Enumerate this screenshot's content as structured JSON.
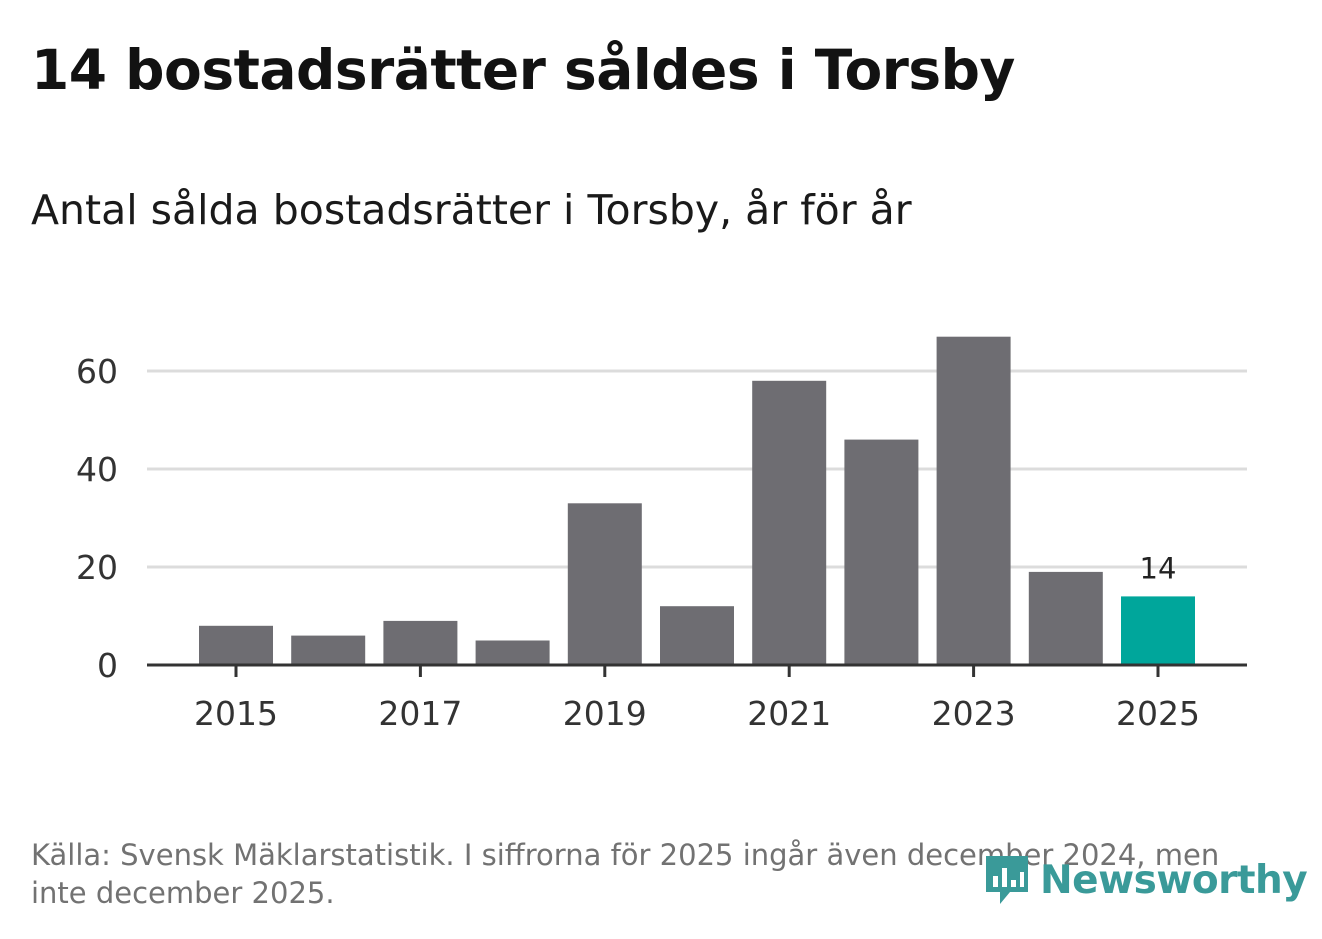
{
  "header": {
    "title": "14 bostadsrätter såldes i Torsby",
    "subtitle": "Antal sålda bostadsrätter i Torsby, år för år"
  },
  "footer": {
    "source": "Källa: Svensk Mäklarstatistik. I siffrorna för 2025 ingår även december 2024, men inte december 2025.",
    "logo_text": "Newsworthy"
  },
  "colors": {
    "bar": "#6e6d72",
    "highlight": "#00a69b",
    "grid": "#dcdcdc",
    "axis": "#333333",
    "logo": "#3a9a99"
  },
  "chart_data": {
    "type": "bar",
    "title": "14 bostadsrätter såldes i Torsby",
    "subtitle": "Antal sålda bostadsrätter i Torsby, år för år",
    "xlabel": "",
    "ylabel": "",
    "categories": [
      "2015",
      "2016",
      "2017",
      "2018",
      "2019",
      "2020",
      "2021",
      "2022",
      "2023",
      "2024",
      "2025"
    ],
    "values": [
      8,
      6,
      9,
      5,
      33,
      12,
      58,
      46,
      67,
      19,
      14
    ],
    "highlight_index": 10,
    "data_labels": [
      {
        "index": 10,
        "text": "14"
      }
    ],
    "x_tick_labels": [
      "2015",
      "2017",
      "2019",
      "2021",
      "2023",
      "2025"
    ],
    "y_ticks": [
      0,
      20,
      40,
      60
    ],
    "ylim": [
      0,
      70
    ],
    "grid": true,
    "legend": "none"
  }
}
